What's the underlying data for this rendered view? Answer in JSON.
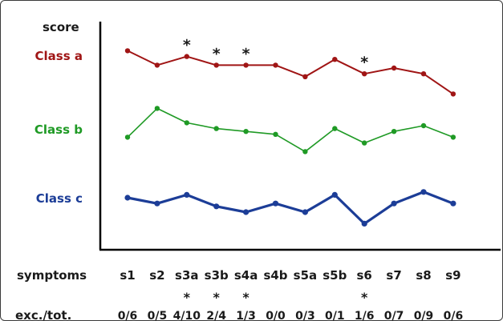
{
  "chart_data": {
    "type": "line",
    "ylabel": "score",
    "x_label_row": "symptoms",
    "categories": [
      "s1",
      "s2",
      "s3a",
      "s3b",
      "s4a",
      "s4b",
      "s5a",
      "s5b",
      "s6",
      "s7",
      "s8",
      "s9"
    ],
    "ratio_label": "exc./tot.",
    "ratios": [
      "0/6",
      "0/5",
      "4/10",
      "2/4",
      "1/3",
      "0/0",
      "0/3",
      "0/1",
      "1/6",
      "0/7",
      "0/9",
      "0/6"
    ],
    "significance_marker": "*",
    "significant_categories": [
      "s3a",
      "s3b",
      "s4a",
      "s6"
    ],
    "grid": false,
    "y_ticks": false,
    "series": [
      {
        "name": "Class a",
        "color": "#a01515",
        "values": [
          6.6,
          6.1,
          6.4,
          6.1,
          6.1,
          6.1,
          5.7,
          6.3,
          5.8,
          6.0,
          5.8,
          5.1
        ]
      },
      {
        "name": "Class b",
        "color": "#1f9a25",
        "values": [
          3.6,
          4.6,
          4.1,
          3.9,
          3.8,
          3.7,
          3.1,
          3.9,
          3.4,
          3.8,
          4.0,
          3.6
        ]
      },
      {
        "name": "Class c",
        "color": "#1c3d97",
        "values": [
          1.5,
          1.3,
          1.6,
          1.2,
          1.0,
          1.3,
          1.0,
          1.6,
          0.6,
          1.3,
          1.7,
          1.3
        ]
      }
    ]
  }
}
